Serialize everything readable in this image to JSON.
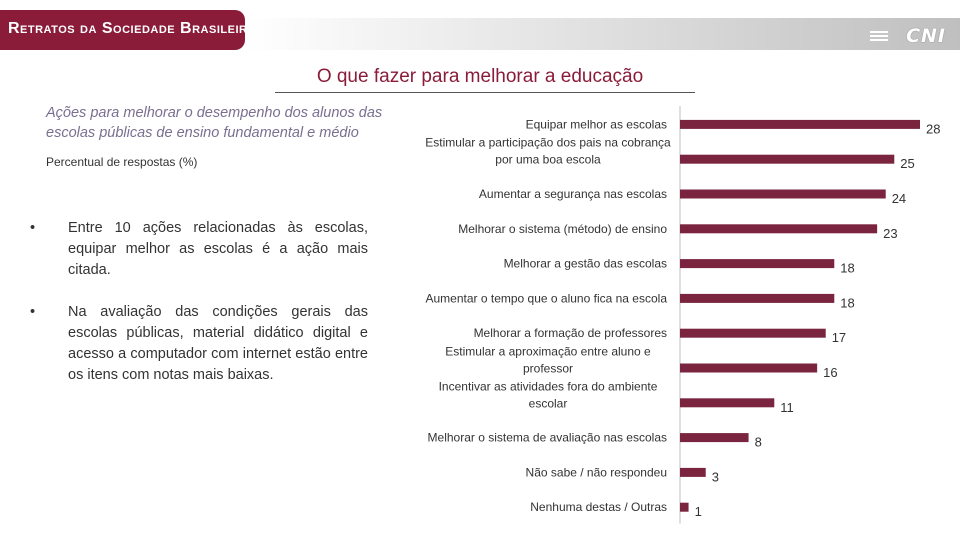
{
  "header": {
    "banner_text": "Retratos da Sociedade Brasileira",
    "logo_text": "CNI"
  },
  "title": "O que fazer para melhorar a educação",
  "subtitle": "Ações para melhorar o desempenho dos alunos das escolas públicas de ensino fundamental e médio",
  "percent_label": "Percentual de respostas (%)",
  "bullets": [
    "Entre 10 ações relacionadas às escolas, equipar melhor as escolas é a ação mais citada.",
    "Na avaliação das condições gerais das escolas públicas, material didático digital e acesso a computador com internet estão entre os itens com notas mais baixas."
  ],
  "bullet_symbol": "•",
  "colors": {
    "bar": "#7b2440",
    "accent": "#8a1c3a"
  },
  "chart_data": {
    "type": "bar",
    "orientation": "horizontal",
    "categories": [
      [
        "Equipar melhor as escolas"
      ],
      [
        "Estimular a participação dos pais na cobrança",
        "por uma boa escola"
      ],
      [
        "Aumentar a segurança nas escolas"
      ],
      [
        "Melhorar o sistema (método) de ensino"
      ],
      [
        "Melhorar a gestão das escolas"
      ],
      [
        "Aumentar o tempo que o aluno fica na escola"
      ],
      [
        "Melhorar a formação de professores"
      ],
      [
        "Estimular a aproximação entre aluno e",
        "professor"
      ],
      [
        "Incentivar as atividades fora do ambiente",
        "escolar"
      ],
      [
        "Melhorar o sistema de avaliação nas escolas"
      ],
      [
        "Não sabe / não respondeu"
      ],
      [
        "Nenhuma destas / Outras"
      ]
    ],
    "values": [
      28,
      25,
      24,
      23,
      18,
      18,
      17,
      16,
      11,
      8,
      3,
      1
    ],
    "xlim": [
      0,
      28
    ],
    "grid": false,
    "legend": "none"
  }
}
